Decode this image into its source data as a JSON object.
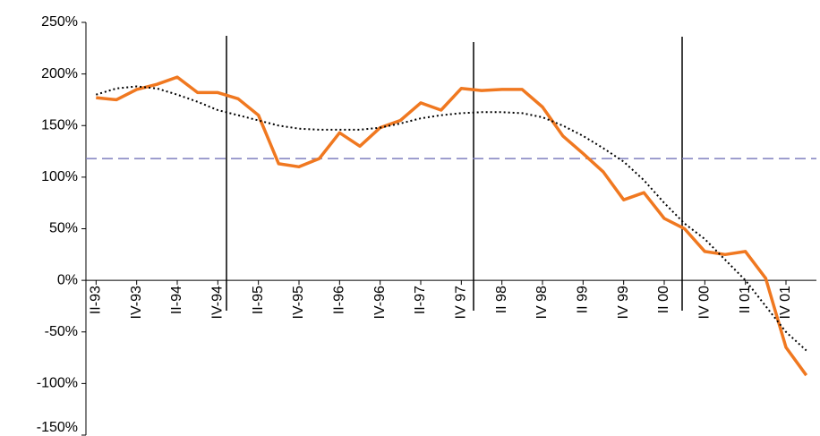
{
  "chart_data": {
    "type": "line",
    "categories": [
      "II-93",
      null,
      "IV-93",
      null,
      "II-94",
      null,
      "IV-94",
      null,
      "II-95",
      null,
      "IV-95",
      null,
      "II-96",
      null,
      "IV-96",
      null,
      "II-97",
      null,
      "IV 97",
      null,
      "II 98",
      null,
      "IV 98",
      null,
      "II 99",
      null,
      "IV 99",
      null,
      "II 00",
      null,
      "IV 00",
      null,
      "II 01",
      null,
      "IV 01",
      null
    ],
    "series": [
      {
        "color": "#f07820",
        "style": "solid",
        "values": [
          177,
          175,
          185,
          190,
          197,
          182,
          182,
          176,
          160,
          113,
          110,
          118,
          143,
          130,
          148,
          155,
          172,
          165,
          186,
          184,
          185,
          185,
          168,
          140,
          123,
          105,
          78,
          85,
          60,
          50,
          28,
          25,
          28,
          2,
          -65,
          -92
        ]
      },
      {
        "color": "#000000",
        "style": "dotted",
        "values": [
          180,
          186,
          188,
          186,
          180,
          173,
          165,
          160,
          155,
          150,
          147,
          146,
          146,
          146,
          148,
          152,
          157,
          160,
          162,
          163,
          163,
          162,
          158,
          150,
          140,
          128,
          115,
          97,
          75,
          55,
          40,
          20,
          0,
          -25,
          -50,
          -68
        ]
      }
    ],
    "reference_line": {
      "value": 118,
      "color": "#7f7fbf"
    },
    "ylim": [
      -150,
      250
    ],
    "yticks": [
      {
        "value": -150,
        "label": "-150%"
      },
      {
        "value": -100,
        "label": "-100%"
      },
      {
        "value": -50,
        "label": "-50%"
      },
      {
        "value": 0,
        "label": "0%"
      },
      {
        "value": 50,
        "label": "50%"
      },
      {
        "value": 100,
        "label": "100%"
      },
      {
        "value": 150,
        "label": "150%"
      },
      {
        "value": 200,
        "label": "200%"
      },
      {
        "value": 250,
        "label": "250%"
      }
    ],
    "grid": false
  }
}
